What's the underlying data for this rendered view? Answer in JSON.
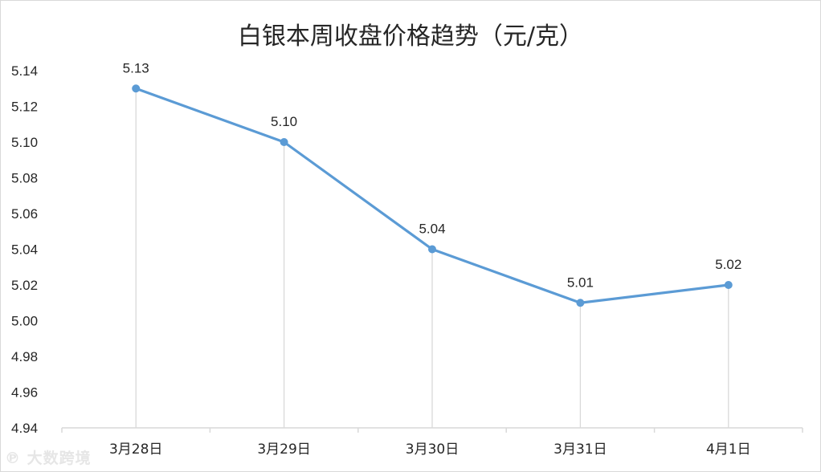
{
  "chart_data": {
    "type": "line",
    "title": "白银本周收盘价格趋势（元/克）",
    "categories": [
      "3月28日",
      "3月29日",
      "3月30日",
      "3月31日",
      "4月1日"
    ],
    "series": [
      {
        "values": [
          5.13,
          5.1,
          5.04,
          5.01,
          5.02
        ]
      }
    ],
    "data_labels": [
      "5.13",
      "5.10",
      "5.04",
      "5.01",
      "5.02"
    ],
    "ylim": [
      4.94,
      5.14
    ],
    "yticks": [
      "4.94",
      "4.96",
      "4.98",
      "5.00",
      "5.02",
      "5.04",
      "5.06",
      "5.08",
      "5.10",
      "5.12",
      "5.14"
    ],
    "ytick_values": [
      4.94,
      4.96,
      4.98,
      5.0,
      5.02,
      5.04,
      5.06,
      5.08,
      5.1,
      5.12,
      5.14
    ],
    "grid": false,
    "drop_lines": true,
    "legend": "none",
    "line_color": "#5b9bd5",
    "dropline_color": "#d9d9d9"
  },
  "watermark": "大数跨境"
}
